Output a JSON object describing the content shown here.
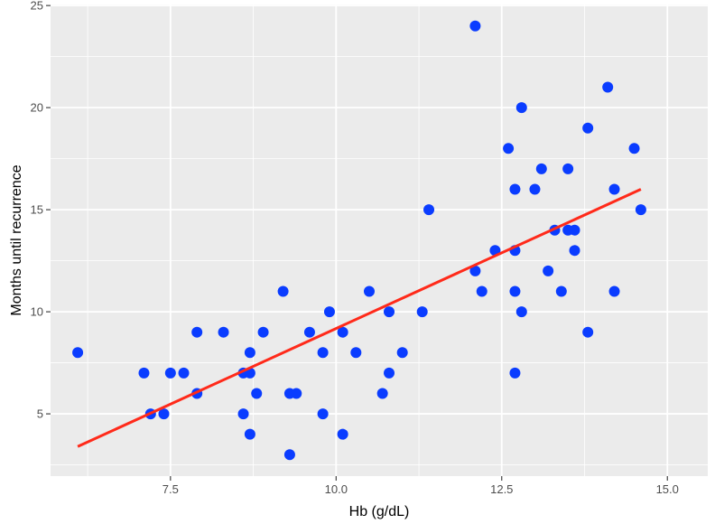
{
  "chart_data": {
    "type": "scatter",
    "title": "",
    "xlabel": "Hb (g/dL)",
    "ylabel": "Months until recurrence",
    "xlim": [
      5.69,
      15.61
    ],
    "ylim": [
      1.95,
      25.05
    ],
    "x_ticks": [
      7.5,
      10.0,
      12.5,
      15.0
    ],
    "x_tick_labels": [
      "7.5",
      "10.0",
      "12.5",
      "15.0"
    ],
    "y_ticks": [
      5,
      10,
      15,
      20,
      25
    ],
    "y_tick_labels": [
      "5",
      "10",
      "15",
      "20",
      "25"
    ],
    "grid": true,
    "legend": "none",
    "colors": {
      "panel": "#ebebeb",
      "grid_major": "#ffffff",
      "points": "#0a3cff",
      "fit_line": "#ff2a1a"
    },
    "points": [
      {
        "x": 6.1,
        "y": 8
      },
      {
        "x": 7.1,
        "y": 7
      },
      {
        "x": 7.2,
        "y": 5
      },
      {
        "x": 7.4,
        "y": 5
      },
      {
        "x": 7.5,
        "y": 7
      },
      {
        "x": 7.7,
        "y": 7
      },
      {
        "x": 7.9,
        "y": 9
      },
      {
        "x": 7.9,
        "y": 6
      },
      {
        "x": 8.3,
        "y": 9
      },
      {
        "x": 8.6,
        "y": 7
      },
      {
        "x": 8.6,
        "y": 5
      },
      {
        "x": 8.7,
        "y": 8
      },
      {
        "x": 8.7,
        "y": 7
      },
      {
        "x": 8.7,
        "y": 4
      },
      {
        "x": 8.8,
        "y": 6
      },
      {
        "x": 8.9,
        "y": 9
      },
      {
        "x": 9.2,
        "y": 11
      },
      {
        "x": 9.3,
        "y": 6
      },
      {
        "x": 9.3,
        "y": 3
      },
      {
        "x": 9.4,
        "y": 6
      },
      {
        "x": 9.6,
        "y": 9
      },
      {
        "x": 9.8,
        "y": 8
      },
      {
        "x": 9.8,
        "y": 5
      },
      {
        "x": 9.9,
        "y": 10
      },
      {
        "x": 10.1,
        "y": 9
      },
      {
        "x": 10.1,
        "y": 4
      },
      {
        "x": 10.3,
        "y": 8
      },
      {
        "x": 10.5,
        "y": 11
      },
      {
        "x": 10.7,
        "y": 6
      },
      {
        "x": 10.8,
        "y": 10
      },
      {
        "x": 10.8,
        "y": 7
      },
      {
        "x": 11.0,
        "y": 8
      },
      {
        "x": 11.3,
        "y": 10
      },
      {
        "x": 11.4,
        "y": 15
      },
      {
        "x": 12.1,
        "y": 24
      },
      {
        "x": 12.1,
        "y": 12
      },
      {
        "x": 12.2,
        "y": 11
      },
      {
        "x": 12.4,
        "y": 13
      },
      {
        "x": 12.6,
        "y": 18
      },
      {
        "x": 12.7,
        "y": 16
      },
      {
        "x": 12.7,
        "y": 13
      },
      {
        "x": 12.7,
        "y": 11
      },
      {
        "x": 12.7,
        "y": 7
      },
      {
        "x": 12.8,
        "y": 20
      },
      {
        "x": 12.8,
        "y": 10
      },
      {
        "x": 13.0,
        "y": 16
      },
      {
        "x": 13.1,
        "y": 17
      },
      {
        "x": 13.2,
        "y": 12
      },
      {
        "x": 13.3,
        "y": 14
      },
      {
        "x": 13.4,
        "y": 11
      },
      {
        "x": 13.5,
        "y": 17
      },
      {
        "x": 13.5,
        "y": 14
      },
      {
        "x": 13.6,
        "y": 14
      },
      {
        "x": 13.6,
        "y": 13
      },
      {
        "x": 13.8,
        "y": 19
      },
      {
        "x": 13.8,
        "y": 9
      },
      {
        "x": 14.1,
        "y": 21
      },
      {
        "x": 14.2,
        "y": 16
      },
      {
        "x": 14.2,
        "y": 11
      },
      {
        "x": 14.5,
        "y": 18
      },
      {
        "x": 14.6,
        "y": 15
      }
    ],
    "fit_line": {
      "x": [
        6.1,
        14.6
      ],
      "y": [
        3.4,
        16.0
      ]
    }
  }
}
